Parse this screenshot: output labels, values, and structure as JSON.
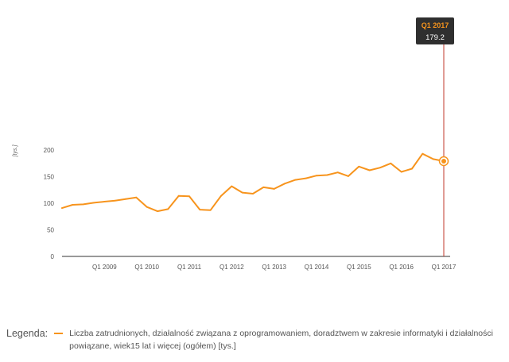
{
  "colors": {
    "series": "#f7941d",
    "axis": "#333333",
    "tooltip_bg": "#2f2f2f",
    "tooltip_accent": "#f7941d",
    "cursor": "#c0392b"
  },
  "legend": {
    "title": "Legenda:",
    "text": "Liczba zatrudnionych, działalność związana z oprogramowaniem, doradztwem w zakresie informatyki i działalności powiązane, wiek15 lat i więcej (ogółem) [tys.]"
  },
  "tooltip": {
    "period": "Q1 2017",
    "value": "179.2"
  },
  "chart_data": {
    "type": "line",
    "ylabel": "[tys.]",
    "ylim": [
      0,
      210
    ],
    "yticks": [
      0,
      50,
      100,
      150,
      200
    ],
    "xtick_labels": [
      "Q1 2009",
      "Q1 2010",
      "Q1 2011",
      "Q1 2012",
      "Q1 2013",
      "Q1 2014",
      "Q1 2015",
      "Q1 2016",
      "Q1 2017"
    ],
    "grid": false,
    "legend_position": "bottom",
    "x": [
      "Q1 2008",
      "Q2 2008",
      "Q3 2008",
      "Q4 2008",
      "Q1 2009",
      "Q2 2009",
      "Q3 2009",
      "Q4 2009",
      "Q1 2010",
      "Q2 2010",
      "Q3 2010",
      "Q4 2010",
      "Q1 2011",
      "Q2 2011",
      "Q3 2011",
      "Q4 2011",
      "Q1 2012",
      "Q2 2012",
      "Q3 2012",
      "Q4 2012",
      "Q1 2013",
      "Q2 2013",
      "Q3 2013",
      "Q4 2013",
      "Q1 2014",
      "Q2 2014",
      "Q3 2014",
      "Q4 2014",
      "Q1 2015",
      "Q2 2015",
      "Q3 2015",
      "Q4 2015",
      "Q1 2016",
      "Q2 2016",
      "Q3 2016",
      "Q4 2016",
      "Q1 2017"
    ],
    "series": [
      {
        "name": "Liczba zatrudnionych, działalność związana z oprogramowaniem, doradztwem w zakresie informatyki i działalności powiązane, wiek15 lat i więcej (ogółem) [tys.]",
        "values": [
          91,
          97,
          98,
          101,
          103,
          105,
          108,
          111,
          93,
          85,
          89,
          114,
          113,
          88,
          87,
          114,
          132,
          120,
          118,
          130,
          127,
          137,
          144,
          147,
          152,
          153,
          158,
          151,
          169,
          162,
          167,
          175,
          159,
          165,
          193,
          183,
          179.2
        ]
      }
    ]
  }
}
